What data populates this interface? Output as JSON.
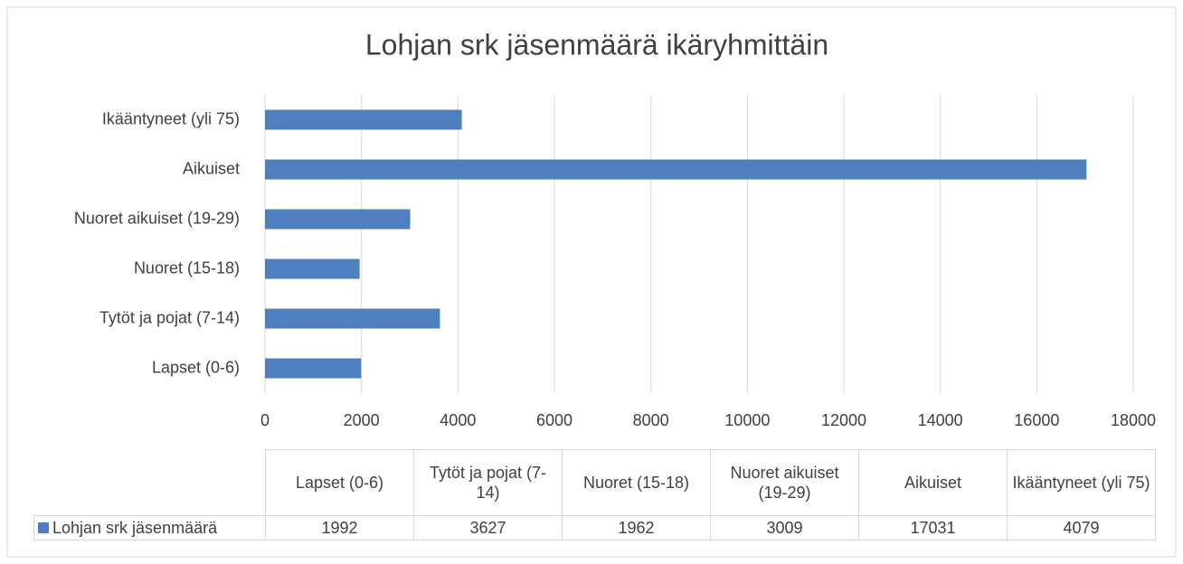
{
  "chart_data": {
    "type": "bar",
    "orientation": "horizontal",
    "title": "Lohjan srk jäsenmäärä ikäryhmittäin",
    "categories": [
      "Lapset (0-6)",
      "Tytöt ja pojat (7-14)",
      "Nuoret (15-18)",
      "Nuoret aikuiset (19-29)",
      "Aikuiset",
      "Ikääntyneet (yli 75)"
    ],
    "series": [
      {
        "name": "Lohjan srk jäsenmäärä",
        "color": "#4e7fbf",
        "values": [
          1992,
          3627,
          1962,
          3009,
          17031,
          4079
        ]
      }
    ],
    "xlim": [
      0,
      18000
    ],
    "xticks": [
      0,
      2000,
      4000,
      6000,
      8000,
      10000,
      12000,
      14000,
      16000,
      18000
    ],
    "grid": true,
    "data_table": true
  }
}
